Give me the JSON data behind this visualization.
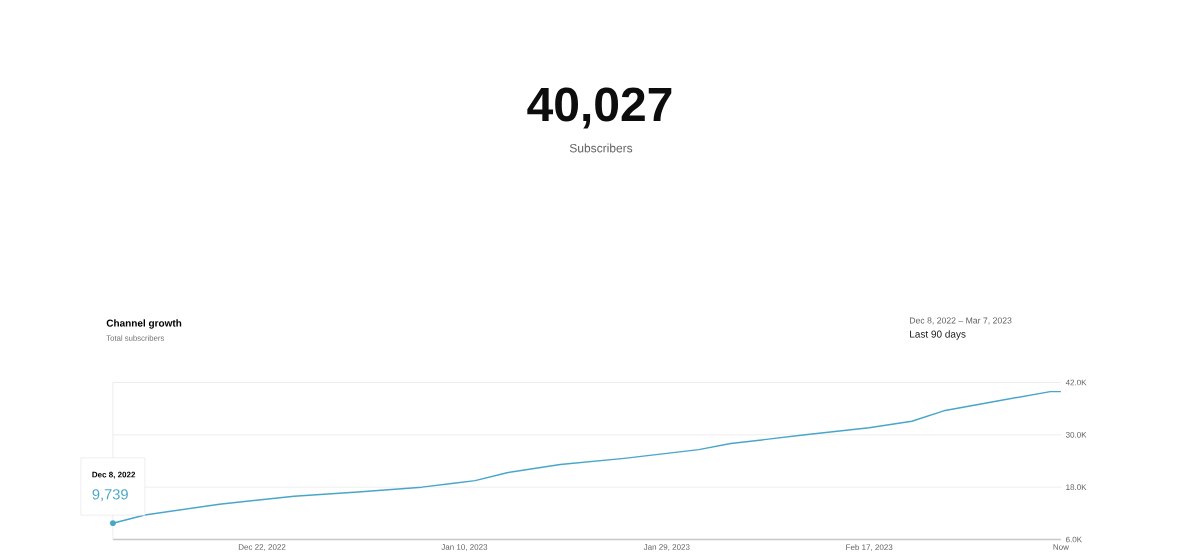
{
  "chart_data": {
    "type": "line",
    "title": "Channel growth",
    "subtitle": "Total subscribers",
    "x": [
      "2022-12-08",
      "2022-12-11",
      "2022-12-18",
      "2022-12-25",
      "2022-12-31",
      "2023-01-06",
      "2023-01-09",
      "2023-01-11",
      "2023-01-14",
      "2023-01-19",
      "2023-01-25",
      "2023-02-01",
      "2023-02-04",
      "2023-02-11",
      "2023-02-17",
      "2023-02-21",
      "2023-02-24",
      "2023-02-28",
      "2023-03-06",
      "2023-03-07"
    ],
    "series": [
      {
        "color": "#48a6c9",
        "values": [
          9739,
          11600,
          14100,
          15900,
          16900,
          18000,
          18900,
          19500,
          21300,
          23200,
          24600,
          26600,
          28000,
          30000,
          31600,
          33100,
          35500,
          37300,
          39900,
          39900
        ]
      }
    ],
    "xlim": [
      "2022-12-08",
      "2023-03-07"
    ],
    "xticks": [
      {
        "value": "2022-12-22",
        "label": "Dec 22, 2022"
      },
      {
        "value": "2023-01-10",
        "label": "Jan 10, 2023"
      },
      {
        "value": "2023-01-29",
        "label": "Jan 29, 2023"
      },
      {
        "value": "2023-02-17",
        "label": "Feb 17, 2023"
      },
      {
        "value": "2023-03-07",
        "label": "Now"
      }
    ],
    "ylim": [
      6000,
      42000
    ],
    "yticks": [
      {
        "value": 6000,
        "label": "6.0K"
      },
      {
        "value": 18000,
        "label": "18.0K"
      },
      {
        "value": 30000,
        "label": "30.0K"
      },
      {
        "value": 42000,
        "label": "42.0K"
      }
    ],
    "grid": "y",
    "annotations": [
      "40,027",
      "Subscribers",
      "Dec 8, 2022 – Mar 7, 2023",
      "Last 90 days",
      "Dec 8, 2022",
      "9,739"
    ]
  }
}
